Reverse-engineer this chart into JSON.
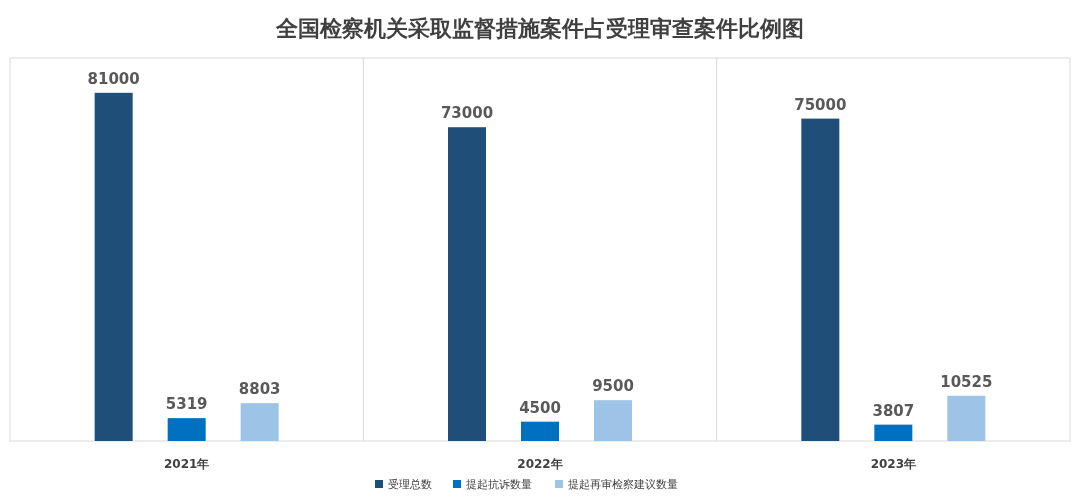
{
  "chart_data": {
    "type": "bar",
    "title": "全国检察机关采取监督措施案件占受理审查案件比例图",
    "categories": [
      "2021年",
      "2022年",
      "2023年"
    ],
    "series": [
      {
        "name": "受理总数",
        "color": "#1f4e79",
        "values": [
          81000,
          73000,
          75000
        ]
      },
      {
        "name": "提起抗诉数量",
        "color": "#0070c0",
        "values": [
          5319,
          4500,
          3807
        ]
      },
      {
        "name": "提起再审检察建议数量",
        "color": "#9dc3e6",
        "values": [
          8803,
          9500,
          10525
        ]
      }
    ],
    "data_labels": true,
    "grid": "x",
    "legend": "bottom",
    "tick_labels": "x"
  }
}
